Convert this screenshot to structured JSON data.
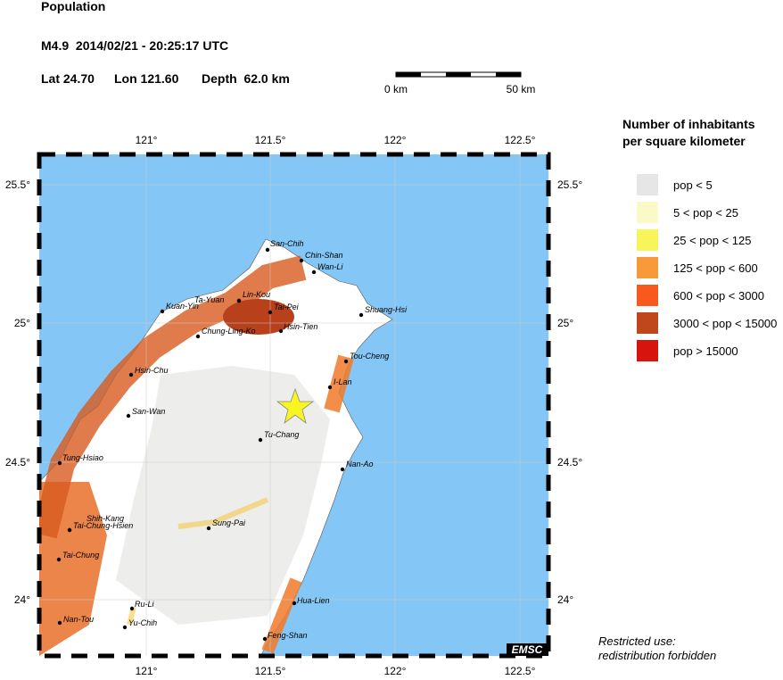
{
  "header": {
    "title": "Population",
    "event": "M4.9  2014/02/21 - 20:25:17 UTC",
    "lat": "Lat 24.70",
    "lon": "Lon 121.60",
    "depth": "Depth  62.0 km"
  },
  "scale": {
    "start": "0 km",
    "end": "50 km"
  },
  "map": {
    "x_labels": [
      "121°",
      "121.5°",
      "122°",
      "122.5°"
    ],
    "y_labels": [
      "25.5°",
      "25°",
      "24.5°",
      "24°"
    ],
    "cities": [
      "San-Chih",
      "Chin-Shan",
      "Wan-Li",
      "Ta-Yuan",
      "Lin-Kou",
      "Kuan-Yin",
      "Tai-Pei",
      "Shuang-Hsi",
      "Chung-Ling-Ko",
      "Hsin-Tien",
      "Tou-Cheng",
      "Hsin-Chu",
      "I-Lan",
      "San-Wan",
      "Tu-Chang",
      "Tung-Hsiao",
      "Nan-Ao",
      "Shih-Kang",
      "Tai-Chung-Hsien",
      "Sung-Pai",
      "Tai-Chung",
      "Hua-Lien",
      "Ru-Li",
      "Nan-Tou",
      "Yu-Chih",
      "Feng-Shan"
    ],
    "credit": "EMSC"
  },
  "legend": {
    "title": [
      "Number of inhabitants",
      "per square kilometer"
    ],
    "items": [
      {
        "label": "pop < 5",
        "color": "#e6e6e6"
      },
      {
        "label": "5 < pop < 25",
        "color": "#fafac8"
      },
      {
        "label": "25 < pop < 125",
        "color": "#f8f55a"
      },
      {
        "label": "125 < pop < 600",
        "color": "#f8993a"
      },
      {
        "label": "600 < pop < 3000",
        "color": "#f85a1e"
      },
      {
        "label": "3000 < pop < 15000",
        "color": "#c0461b"
      },
      {
        "label": "pop > 15000",
        "color": "#d8140f"
      }
    ]
  },
  "footer": [
    "Restricted use:",
    "redistribution forbidden"
  ]
}
